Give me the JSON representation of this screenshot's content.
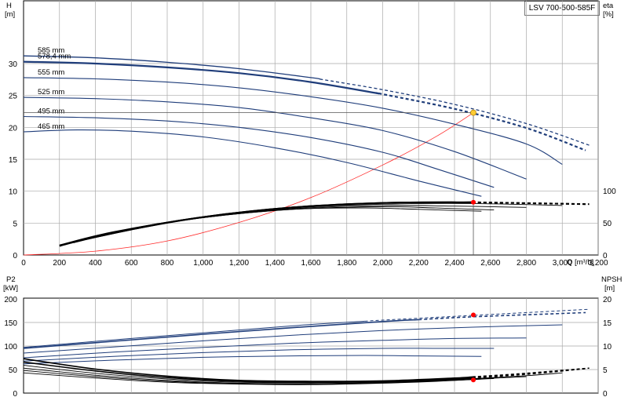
{
  "model": "LSV 700-500-585F",
  "chart_data": [
    {
      "type": "line",
      "name": "head_and_efficiency",
      "y_left_label": "H",
      "y_left_unit": "[m]",
      "y_right_label": "eta",
      "y_right_unit": "[%]",
      "x_label": "Q",
      "x_unit": "[m³/h]",
      "xlim": [
        0,
        3200
      ],
      "ylim_left": [
        0,
        35
      ],
      "ylim_right": [
        0,
        100
      ],
      "x_ticks": [
        "0",
        "200",
        "400",
        "600",
        "800",
        "1,000",
        "1,200",
        "1,400",
        "1,600",
        "1,800",
        "2,000",
        "2,200",
        "2,400",
        "2,600",
        "2,800",
        "3,000",
        "3,200"
      ],
      "y_left_ticks": [
        "0",
        "5",
        "10",
        "15",
        "20",
        "25",
        "30"
      ],
      "y_right_ticks": [
        "0",
        "50",
        "100"
      ],
      "grid": true,
      "head_curves": [
        {
          "diameter": "585 mm",
          "points": [
            [
              0,
              31.2
            ],
            [
              400,
              30.9
            ],
            [
              800,
              30.2
            ],
            [
              1200,
              29.2
            ],
            [
              1600,
              27.8
            ],
            [
              2000,
              25.9
            ],
            [
              2400,
              23.6
            ],
            [
              2800,
              20.6
            ],
            [
              3150,
              17.2
            ]
          ],
          "solid_until": 1650
        },
        {
          "diameter": "578,4 mm",
          "points": [
            [
              0,
              30.3
            ],
            [
              400,
              30.0
            ],
            [
              800,
              29.4
            ],
            [
              1200,
              28.5
            ],
            [
              1600,
              27.1
            ],
            [
              2000,
              25.2
            ],
            [
              2400,
              22.9
            ],
            [
              2800,
              19.9
            ],
            [
              3130,
              16.4
            ]
          ],
          "solid_until": 1980
        },
        {
          "diameter": "555 mm",
          "points": [
            [
              0,
              27.8
            ],
            [
              400,
              27.6
            ],
            [
              800,
              27.1
            ],
            [
              1200,
              26.2
            ],
            [
              1600,
              24.8
            ],
            [
              2000,
              23.0
            ],
            [
              2400,
              20.5
            ],
            [
              2800,
              17.4
            ],
            [
              3000,
              14.2
            ]
          ],
          "solid_until": 3000
        },
        {
          "diameter": "525 mm",
          "points": [
            [
              0,
              24.7
            ],
            [
              400,
              24.5
            ],
            [
              800,
              24.0
            ],
            [
              1200,
              23.1
            ],
            [
              1600,
              21.5
            ],
            [
              2000,
              19.5
            ],
            [
              2400,
              16.2
            ],
            [
              2800,
              11.9
            ]
          ],
          "solid_until": 2800
        },
        {
          "diameter": "495 mm",
          "points": [
            [
              0,
              21.7
            ],
            [
              400,
              21.5
            ],
            [
              800,
              21.0
            ],
            [
              1200,
              20.0
            ],
            [
              1600,
              18.4
            ],
            [
              2000,
              16.1
            ],
            [
              2300,
              13.5
            ],
            [
              2620,
              10.6
            ]
          ],
          "solid_until": 2620
        },
        {
          "diameter": "465 mm",
          "points": [
            [
              0,
              19.3
            ],
            [
              300,
              19.6
            ],
            [
              600,
              19.4
            ],
            [
              1000,
              18.5
            ],
            [
              1400,
              16.8
            ],
            [
              1800,
              14.5
            ],
            [
              2200,
              11.6
            ],
            [
              2550,
              9.2
            ]
          ],
          "solid_until": 2550
        }
      ],
      "efficiency_curves": [
        {
          "points": [
            [
              200,
              14
            ],
            [
              500,
              35
            ],
            [
              1000,
              59
            ],
            [
              1500,
              74
            ],
            [
              2000,
              81
            ],
            [
              2500,
              82
            ],
            [
              3150,
              79
            ]
          ],
          "solid_until": 2500
        },
        {
          "points": [
            [
              200,
              15
            ],
            [
              500,
              35.5
            ],
            [
              1000,
              59
            ],
            [
              1500,
              74
            ],
            [
              2000,
              81
            ],
            [
              2500,
              82
            ],
            [
              3130,
              79
            ]
          ],
          "solid_until": 2500
        },
        {
          "points": [
            [
              220,
              16
            ],
            [
              600,
              39
            ],
            [
              1000,
              59
            ],
            [
              1500,
              73
            ],
            [
              2000,
              79
            ],
            [
              2500,
              80
            ],
            [
              3000,
              77
            ]
          ],
          "solid_until": 3000
        },
        {
          "points": [
            [
              240,
              17
            ],
            [
              600,
              39
            ],
            [
              1000,
              58
            ],
            [
              1500,
              72
            ],
            [
              2000,
              77
            ],
            [
              2400,
              76
            ],
            [
              2800,
              74
            ]
          ],
          "solid_until": 2800
        },
        {
          "points": [
            [
              260,
              18
            ],
            [
              600,
              40
            ],
            [
              1000,
              58
            ],
            [
              1500,
              71
            ],
            [
              2000,
              75
            ],
            [
              2300,
              73
            ],
            [
              2620,
              70
            ]
          ],
          "solid_until": 2620
        },
        {
          "points": [
            [
              280,
              19
            ],
            [
              600,
              41
            ],
            [
              1000,
              58
            ],
            [
              1500,
              71
            ],
            [
              1900,
              73
            ],
            [
              2200,
              71
            ],
            [
              2550,
              68
            ]
          ],
          "solid_until": 2550
        }
      ],
      "system_curve": {
        "points": [
          [
            0,
            0
          ],
          [
            400,
            0.6
          ],
          [
            800,
            2.2
          ],
          [
            1200,
            5.1
          ],
          [
            1600,
            9.0
          ],
          [
            2000,
            14.1
          ],
          [
            2300,
            18.6
          ],
          [
            2500,
            22.2
          ]
        ]
      },
      "duty_point": {
        "Q": 2505,
        "H": 22.3,
        "eta": 82
      }
    },
    {
      "type": "line",
      "name": "power_and_npsh",
      "y_left_label": "P2",
      "y_left_unit": "[kW]",
      "y_right_label": "NPSH",
      "y_right_unit": "[m]",
      "xlim": [
        0,
        3200
      ],
      "ylim_left": [
        0,
        200
      ],
      "ylim_right": [
        0,
        20
      ],
      "y_left_ticks": [
        "0",
        "50",
        "100",
        "150",
        "200"
      ],
      "y_right_ticks": [
        "0",
        "5",
        "10",
        "15",
        "20"
      ],
      "grid": true,
      "power_curves": [
        {
          "points": [
            [
              0,
              97
            ],
            [
              500,
              113
            ],
            [
              1000,
              128
            ],
            [
              1500,
              143
            ],
            [
              2000,
              155
            ],
            [
              2500,
              165
            ],
            [
              3150,
              178
            ]
          ],
          "solid_until": 1900
        },
        {
          "points": [
            [
              0,
              95
            ],
            [
              500,
              110
            ],
            [
              1000,
              125
            ],
            [
              1500,
              139
            ],
            [
              2000,
              152
            ],
            [
              2500,
              162
            ],
            [
              3130,
              171
            ]
          ],
          "solid_until": 2200
        },
        {
          "points": [
            [
              0,
              85
            ],
            [
              500,
              98
            ],
            [
              1000,
              111
            ],
            [
              1500,
              123
            ],
            [
              2000,
              133
            ],
            [
              2500,
              140
            ],
            [
              3000,
              145
            ]
          ],
          "solid_until": 3000
        },
        {
          "points": [
            [
              0,
              75
            ],
            [
              500,
              87
            ],
            [
              1000,
              97
            ],
            [
              1500,
              106
            ],
            [
              2000,
              112
            ],
            [
              2400,
              116
            ],
            [
              2800,
              117
            ]
          ],
          "solid_until": 2800
        },
        {
          "points": [
            [
              0,
              68
            ],
            [
              500,
              78
            ],
            [
              1000,
              86
            ],
            [
              1500,
              92
            ],
            [
              2000,
              95
            ],
            [
              2300,
              95
            ],
            [
              2620,
              95
            ]
          ],
          "solid_until": 2620
        },
        {
          "points": [
            [
              0,
              62
            ],
            [
              500,
              70
            ],
            [
              1000,
              76
            ],
            [
              1500,
              79
            ],
            [
              1900,
              80
            ],
            [
              2200,
              79
            ],
            [
              2550,
              78
            ]
          ],
          "solid_until": 2550
        }
      ],
      "npsh_curves": [
        {
          "points": [
            [
              0,
              7.3
            ],
            [
              400,
              5.1
            ],
            [
              800,
              3.6
            ],
            [
              1200,
              2.7
            ],
            [
              1600,
              2.5
            ],
            [
              2000,
              2.6
            ],
            [
              2400,
              3.2
            ],
            [
              2800,
              4.2
            ],
            [
              3150,
              5.3
            ]
          ],
          "solid_until": 2500
        },
        {
          "points": [
            [
              0,
              6.6
            ],
            [
              400,
              4.7
            ],
            [
              800,
              3.3
            ],
            [
              1200,
              2.5
            ],
            [
              1600,
              2.3
            ],
            [
              2000,
              2.5
            ],
            [
              2400,
              3.0
            ],
            [
              2800,
              4.0
            ],
            [
              3130,
              5.2
            ]
          ],
          "solid_until": 2500
        },
        {
          "points": [
            [
              0,
              5.9
            ],
            [
              400,
              4.2
            ],
            [
              800,
              3.0
            ],
            [
              1200,
              2.3
            ],
            [
              1600,
              2.2
            ],
            [
              2000,
              2.4
            ],
            [
              2400,
              2.9
            ],
            [
              2800,
              3.7
            ],
            [
              3000,
              4.3
            ]
          ],
          "solid_until": 3000
        },
        {
          "points": [
            [
              0,
              5.3
            ],
            [
              400,
              3.8
            ],
            [
              800,
              2.7
            ],
            [
              1200,
              2.1
            ],
            [
              1600,
              2.0
            ],
            [
              2000,
              2.3
            ],
            [
              2400,
              2.8
            ],
            [
              2800,
              3.5
            ]
          ],
          "solid_until": 2800
        },
        {
          "points": [
            [
              0,
              4.8
            ],
            [
              400,
              3.5
            ],
            [
              800,
              2.5
            ],
            [
              1200,
              2.0
            ],
            [
              1600,
              1.9
            ],
            [
              2000,
              2.2
            ],
            [
              2400,
              2.7
            ],
            [
              2620,
              3.1
            ]
          ],
          "solid_until": 2620
        },
        {
          "points": [
            [
              0,
              4.3
            ],
            [
              400,
              3.2
            ],
            [
              800,
              2.3
            ],
            [
              1200,
              1.9
            ],
            [
              1600,
              1.8
            ],
            [
              2000,
              2.1
            ],
            [
              2300,
              2.5
            ],
            [
              2550,
              3.0
            ]
          ],
          "solid_until": 2550
        }
      ],
      "duty_point": {
        "Q": 2505,
        "P2": 166,
        "NPSH": 2.8
      }
    }
  ],
  "colors": {
    "head": "#1f3d7a",
    "efficiency": "#000000",
    "system": "#ff2a2a",
    "grid": "#a9a9a9",
    "duty_point": "#ffcc33",
    "marker": "#ff0000"
  }
}
